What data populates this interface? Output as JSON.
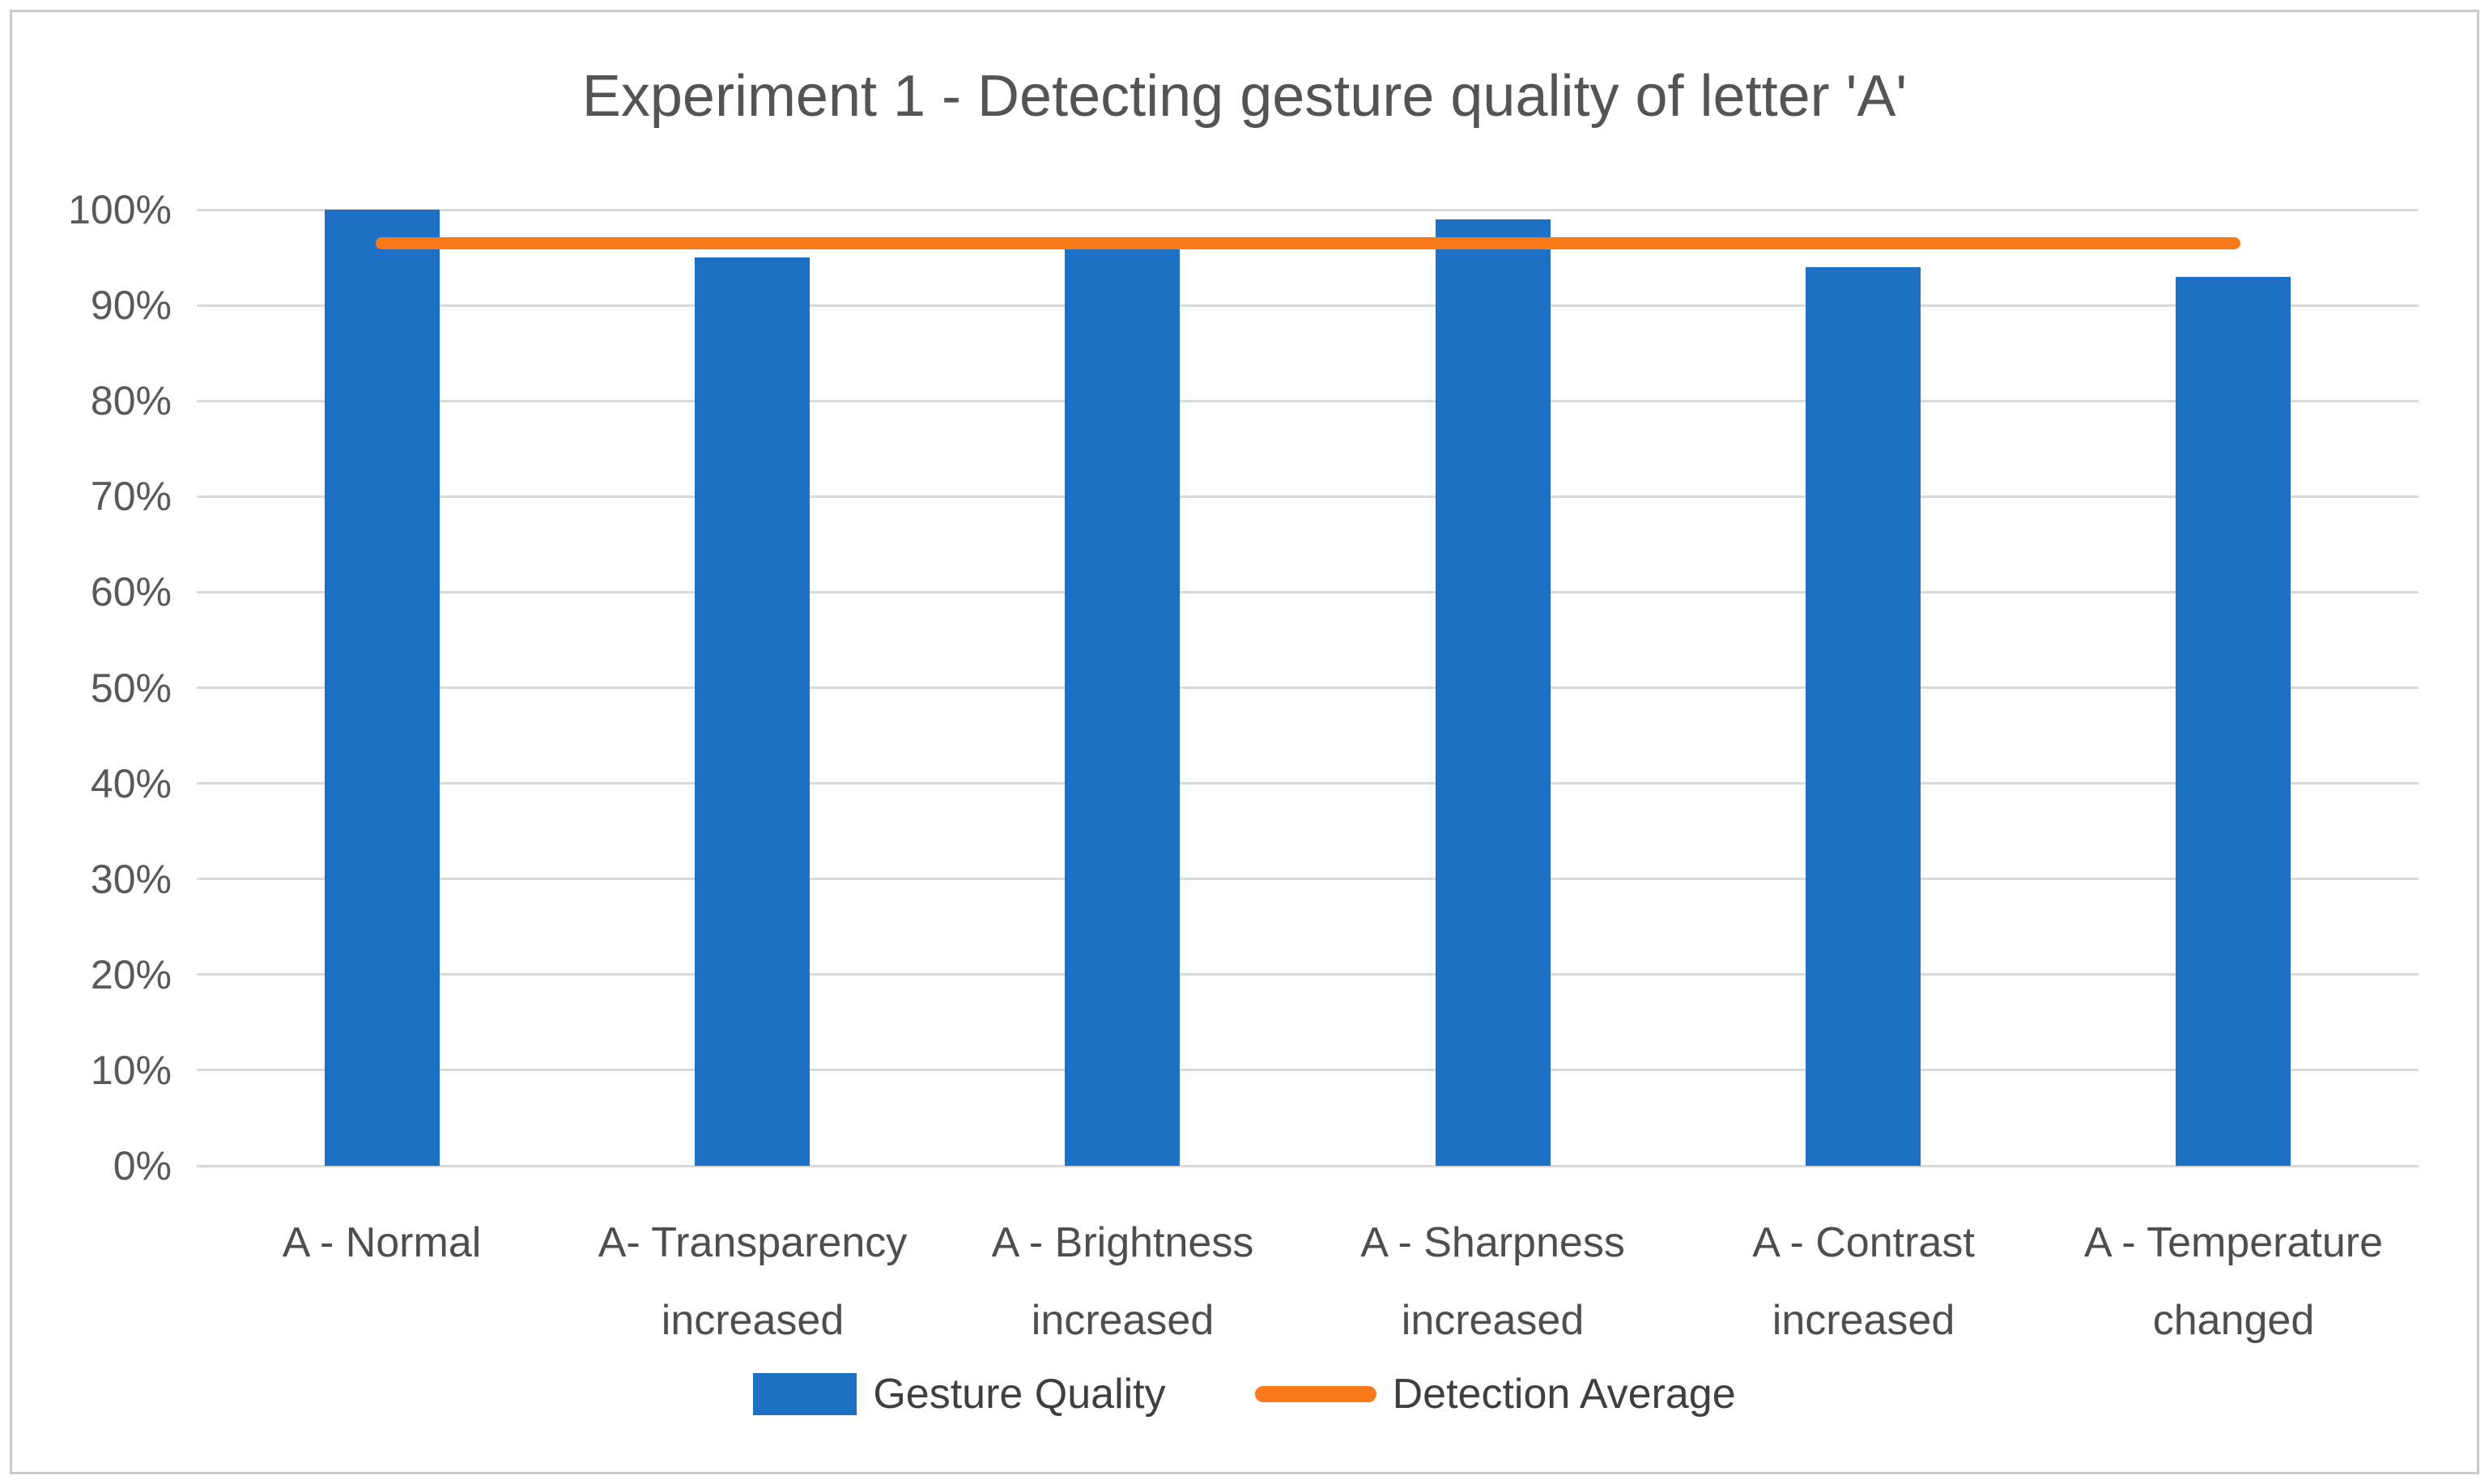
{
  "title": "Experiment 1 - Detecting gesture quality of letter 'A'",
  "colors": {
    "bar_blue": "#1e70c5",
    "line_orange": "#fa7919",
    "gridline": "#d9d9d9",
    "frame_border": "#c9c9c9",
    "title_text": "#545454",
    "axis_text": "#595959",
    "category_text": "#4e4e4e",
    "legend_text": "#3f3f3f"
  },
  "y_axis": {
    "ticks": [
      "0%",
      "10%",
      "20%",
      "30%",
      "40%",
      "50%",
      "60%",
      "70%",
      "80%",
      "90%",
      "100%"
    ],
    "min": 0,
    "max": 100,
    "step": 10
  },
  "legend": {
    "items": [
      {
        "label": "Gesture Quality",
        "marker": "bar-swatch",
        "color": "#1e70c5"
      },
      {
        "label": "Detection Average",
        "marker": "line-swatch",
        "color": "#fa7919"
      }
    ]
  },
  "chart_data": {
    "type": "bar",
    "title": "Experiment 1 - Detecting gesture quality of letter 'A'",
    "categories": [
      "A - Normal",
      "A- Transparency increased",
      "A - Brightness increased",
      "A - Sharpness increased",
      "A - Contrast increased",
      "A - Temperature changed"
    ],
    "series": [
      {
        "name": "Gesture Quality",
        "type": "bar",
        "values": [
          100,
          95,
          96,
          99,
          94,
          93
        ]
      },
      {
        "name": "Detection Average",
        "type": "line",
        "values": [
          96.5,
          96.5,
          96.5,
          96.5,
          96.5,
          96.5
        ]
      }
    ],
    "xlabel": "",
    "ylabel": "",
    "ylim": [
      0,
      100
    ],
    "y_tick_format": "percent",
    "grid": true,
    "legend_position": "bottom"
  }
}
